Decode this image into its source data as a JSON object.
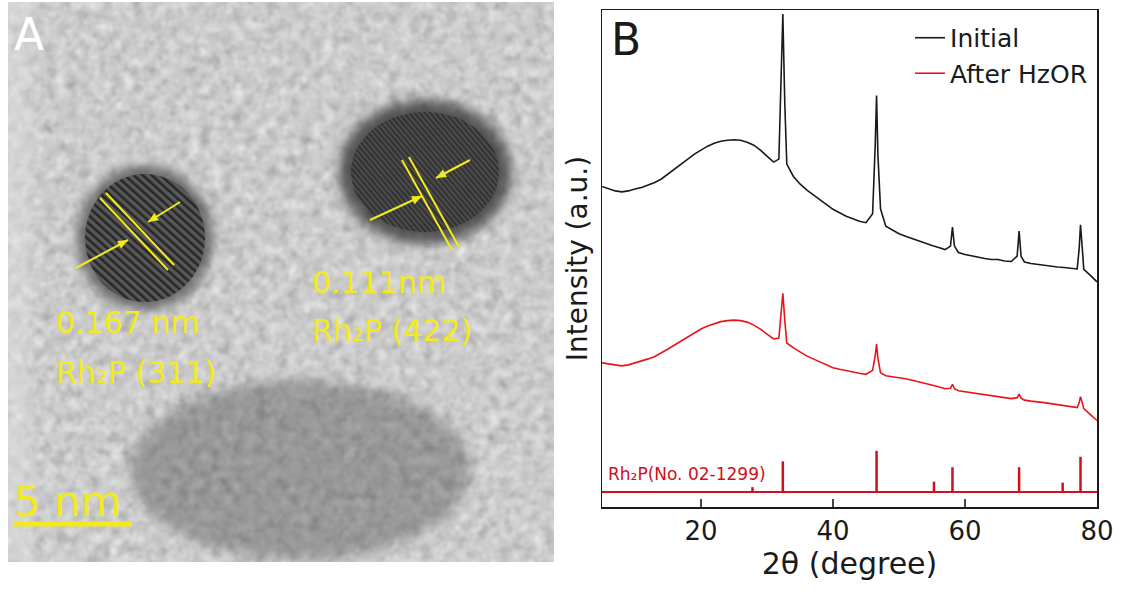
{
  "image_panel": {
    "label": "A",
    "lattice_fringes": [
      {
        "spacing": "0.167 nm",
        "plane": "Rh₂P (311)"
      },
      {
        "spacing": "0.111nm",
        "plane": "Rh₂P (422)"
      }
    ],
    "scale_bar": "5 nm"
  },
  "chart_data": {
    "type": "line",
    "panel_label": "B",
    "x_label": "2θ (degree)",
    "y_label": "Intensity (a.u.)",
    "x": [
      5,
      6,
      7,
      8,
      9,
      10,
      11,
      12,
      13,
      14,
      15,
      16,
      17,
      18,
      19,
      20,
      21,
      22,
      23,
      24,
      25,
      26,
      27,
      28,
      29,
      30,
      31,
      31.8,
      32.1,
      32.4,
      32.7,
      33,
      34,
      35,
      36,
      37,
      38,
      39,
      40,
      41,
      42,
      43,
      44,
      45,
      46,
      46.4,
      46.6,
      46.8,
      47.2,
      48,
      49,
      50,
      51,
      52,
      53,
      54,
      55,
      56,
      57,
      57.8,
      58.1,
      58.4,
      59,
      60,
      61,
      62,
      63,
      64,
      65,
      66,
      67,
      67.9,
      68.2,
      68.5,
      69,
      70,
      71,
      72,
      73,
      74,
      75,
      76,
      77,
      77.3,
      77.5,
      77.8,
      78,
      79,
      80
    ],
    "series": [
      {
        "name": "Initial",
        "color": "#1a1a1a",
        "values": [
          61.5,
          61.0,
          60.6,
          60.4,
          60.6,
          61.0,
          61.3,
          61.8,
          62.3,
          63.0,
          64.0,
          65.0,
          66.0,
          67.0,
          68.0,
          68.8,
          69.6,
          70.2,
          70.6,
          70.8,
          70.9,
          70.8,
          70.4,
          69.8,
          68.8,
          67.6,
          66.4,
          67.0,
          80,
          96.2,
          78,
          66.0,
          63.5,
          62.0,
          60.8,
          59.8,
          58.8,
          57.8,
          56.9,
          56.2,
          55.5,
          55.0,
          54.5,
          54.2,
          56,
          70,
          79.8,
          68,
          57,
          53.5,
          52.8,
          52.0,
          51.5,
          51.0,
          50.5,
          50.0,
          49.6,
          49.2,
          48.8,
          49.5,
          53.3,
          49.5,
          48.2,
          47.8,
          47.5,
          47.2,
          47.0,
          46.8,
          46.8,
          46.5,
          46.4,
          47.5,
          52.5,
          47.4,
          46.3,
          46.0,
          45.8,
          45.6,
          45.4,
          45.3,
          45.2,
          45.0,
          44.9,
          49,
          53.8,
          48.5,
          44.8,
          43.6,
          42.3
        ]
      },
      {
        "name": "After HzOR",
        "color": "#e8141c",
        "values": [
          26.0,
          25.8,
          25.5,
          25.4,
          25.6,
          26.0,
          26.3,
          26.8,
          27.3,
          28.0,
          28.8,
          29.6,
          30.4,
          31.2,
          32.0,
          32.8,
          33.4,
          33.9,
          34.3,
          34.5,
          34.6,
          34.5,
          34.2,
          33.6,
          32.8,
          31.8,
          30.8,
          31.0,
          35.5,
          40.0,
          34.5,
          30.0,
          29.0,
          28.2,
          27.4,
          26.8,
          26.2,
          25.6,
          25.0,
          24.7,
          24.4,
          24.1,
          23.9,
          23.7,
          24.5,
          27.5,
          29.8,
          27.0,
          24.0,
          23.4,
          23.2,
          23.1,
          22.8,
          22.5,
          22.2,
          21.9,
          21.6,
          21.2,
          20.8,
          20.9,
          21.7,
          20.8,
          20.4,
          20.2,
          20.0,
          19.8,
          19.6,
          19.4,
          19.2,
          19.0,
          18.8,
          19.0,
          19.7,
          18.9,
          18.5,
          18.3,
          18.2,
          18.0,
          17.8,
          17.6,
          17.4,
          17.2,
          17.0,
          18.0,
          19.2,
          17.8,
          16.8,
          15.6,
          14.4
        ]
      },
      {
        "name": "Rh₂P(No. 02-1299)",
        "type": "stick",
        "color": "#d0101a",
        "x": [
          27.8,
          32.4,
          46.6,
          55.3,
          58.1,
          68.2,
          74.8,
          77.5
        ],
        "values": [
          1.0,
          6.2,
          8.3,
          2.1,
          5.0,
          5.0,
          1.9,
          7.1
        ]
      }
    ],
    "xlim": [
      5,
      80
    ],
    "xticks": [
      20,
      40,
      60,
      80
    ],
    "ylim": [
      -3,
      97
    ],
    "tick_labels": "x",
    "legend": "upper right",
    "grid": false
  }
}
